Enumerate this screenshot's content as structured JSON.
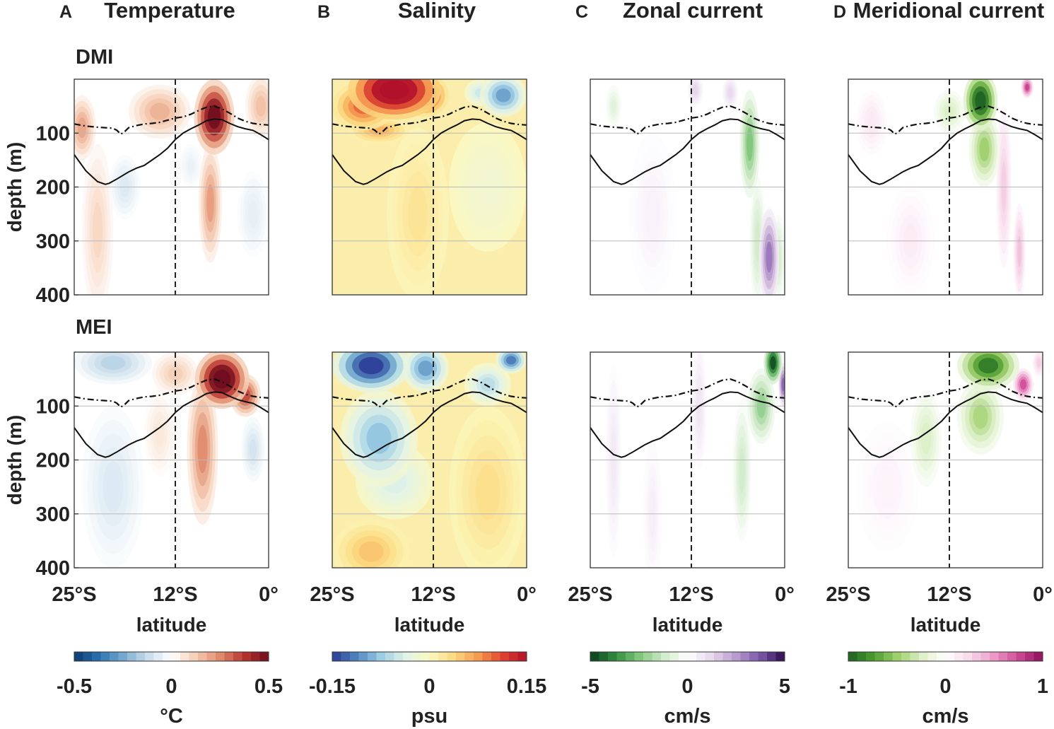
{
  "chart_data": {
    "type": "heatmap",
    "description": "Depth-latitude sections regressed on DMI and MEI",
    "rows": [
      {
        "name": "DMI",
        "label": "DMI"
      },
      {
        "name": "MEI",
        "label": "MEI"
      }
    ],
    "columns": [
      {
        "letter": "A",
        "title": "Temperature",
        "unit": "°C",
        "clim": [
          -0.5,
          0.5
        ],
        "cb_ticks": [
          "-0.5",
          "0",
          "0.5"
        ],
        "colormap": "blue-white-red"
      },
      {
        "letter": "B",
        "title": "Salinity",
        "unit": "psu",
        "clim": [
          -0.15,
          0.15
        ],
        "cb_ticks": [
          "-0.15",
          "0",
          "0.15"
        ],
        "colormap": "spectral"
      },
      {
        "letter": "C",
        "title": "Zonal current",
        "unit": "cm/s",
        "clim": [
          -5,
          5
        ],
        "cb_ticks": [
          "-5",
          "0",
          "5"
        ],
        "colormap": "green-white-purple"
      },
      {
        "letter": "D",
        "title": "Meridional current",
        "unit": "cm/s",
        "clim": [
          -1,
          1
        ],
        "cb_ticks": [
          "-1",
          "0",
          "1"
        ],
        "colormap": "green-white-pink"
      }
    ],
    "xaxis": {
      "label": "latitude",
      "ticks": [
        "25°S",
        "12°S",
        "0°"
      ],
      "tick_values": [
        -25,
        -12,
        0
      ],
      "range": [
        -25,
        0
      ]
    },
    "yaxis": {
      "label": "depth (m)",
      "ticks": [
        "100",
        "200",
        "300",
        "400"
      ],
      "tick_values": [
        100,
        200,
        300,
        400
      ],
      "range": [
        0,
        400
      ],
      "reversed": true
    },
    "reference_line": {
      "latitude": -12,
      "style": "dashed"
    },
    "contours": {
      "solid": {
        "lat": [
          -25,
          -23.5,
          -22,
          -21,
          -20.5,
          -19.5,
          -18,
          -17,
          -16,
          -15,
          -14,
          -13,
          -12,
          -11,
          -10,
          -9,
          -8,
          -7,
          -6,
          -5,
          -4,
          -3,
          -2,
          -1,
          0
        ],
        "depth": [
          140,
          170,
          190,
          195,
          193,
          185,
          172,
          165,
          160,
          150,
          140,
          128,
          112,
          100,
          92,
          85,
          77,
          74,
          75,
          82,
          88,
          92,
          95,
          103,
          112
        ]
      },
      "dashdot": {
        "lat": [
          -25,
          -23.5,
          -22,
          -21,
          -20,
          -19.5,
          -19,
          -18.5,
          -18,
          -17,
          -16,
          -15,
          -14,
          -13,
          -12,
          -11,
          -10,
          -9,
          -8,
          -7,
          -6,
          -5,
          -4,
          -3,
          -2,
          -1,
          0
        ],
        "depth": [
          83,
          87,
          89,
          90,
          91,
          95,
          102,
          97,
          90,
          86,
          83,
          82,
          80,
          76,
          72,
          70,
          65,
          58,
          52,
          50,
          55,
          63,
          72,
          78,
          82,
          84,
          85
        ]
      }
    },
    "anomaly_blobs": {
      "DMI": {
        "Temperature": [
          {
            "lat": -7,
            "depth": 70,
            "value": 0.55,
            "rlat": 2.6,
            "rdep": 70
          },
          {
            "lat": -7.5,
            "depth": 230,
            "value": 0.22,
            "rlat": 1.5,
            "rdep": 110
          },
          {
            "lat": -14,
            "depth": 60,
            "value": 0.18,
            "rlat": 4,
            "rdep": 50
          },
          {
            "lat": -24,
            "depth": 90,
            "value": 0.2,
            "rlat": 1.8,
            "rdep": 60
          },
          {
            "lat": -1,
            "depth": 50,
            "value": 0.15,
            "rlat": 2,
            "rdep": 60
          },
          {
            "lat": -22,
            "depth": 280,
            "value": 0.1,
            "rlat": 2,
            "rdep": 160
          },
          {
            "lat": -18.5,
            "depth": 200,
            "value": -0.08,
            "rlat": 2,
            "rdep": 60
          },
          {
            "lat": -10,
            "depth": 160,
            "value": -0.05,
            "rlat": 1.5,
            "rdep": 40
          },
          {
            "lat": -2,
            "depth": 250,
            "value": -0.06,
            "rlat": 2,
            "rdep": 80
          }
        ],
        "Salinity": [
          {
            "lat": -17,
            "depth": 20,
            "value": 0.2,
            "rlat": 6,
            "rdep": 55
          },
          {
            "lat": -13,
            "depth": 30,
            "value": 0.12,
            "rlat": 3,
            "rdep": 40
          },
          {
            "lat": -21,
            "depth": 50,
            "value": 0.1,
            "rlat": 4,
            "rdep": 45
          },
          {
            "lat": -19,
            "depth": 95,
            "value": 0.06,
            "rlat": 4,
            "rdep": 25
          },
          {
            "lat": -3,
            "depth": 30,
            "value": -0.1,
            "rlat": 3,
            "rdep": 40
          },
          {
            "lat": -6,
            "depth": 25,
            "value": -0.05,
            "rlat": 2,
            "rdep": 25
          },
          {
            "lat": -5,
            "depth": 200,
            "value": -0.015,
            "rlat": 5,
            "rdep": 120
          },
          {
            "lat": -14,
            "depth": 250,
            "value": 0.025,
            "rlat": 4,
            "rdep": 160
          }
        ],
        "Zonal current": [
          {
            "lat": -4.5,
            "depth": 120,
            "value": -2.5,
            "rlat": 1.3,
            "rdep": 100
          },
          {
            "lat": -3.5,
            "depth": 300,
            "value": -1.2,
            "rlat": 1,
            "rdep": 120
          },
          {
            "lat": -0.8,
            "depth": 330,
            "value": -1.2,
            "rlat": 0.8,
            "rdep": 80
          },
          {
            "lat": -2,
            "depth": 330,
            "value": 3.2,
            "rlat": 1.3,
            "rdep": 90
          },
          {
            "lat": -11.5,
            "depth": 20,
            "value": 1.3,
            "rlat": 1,
            "rdep": 30
          },
          {
            "lat": -7,
            "depth": 25,
            "value": 1.2,
            "rlat": 1,
            "rdep": 30
          },
          {
            "lat": -22,
            "depth": 50,
            "value": -0.8,
            "rlat": 1,
            "rdep": 40
          },
          {
            "lat": -17,
            "depth": 250,
            "value": 0.4,
            "rlat": 3,
            "rdep": 150
          }
        ],
        "Meridional current": [
          {
            "lat": -8,
            "depth": 40,
            "value": -1.1,
            "rlat": 2.2,
            "rdep": 55
          },
          {
            "lat": -7.5,
            "depth": 130,
            "value": -0.5,
            "rlat": 2,
            "rdep": 70
          },
          {
            "lat": -2,
            "depth": 15,
            "value": 0.8,
            "rlat": 0.8,
            "rdep": 20
          },
          {
            "lat": -5,
            "depth": 200,
            "value": 0.3,
            "rlat": 1,
            "rdep": 150
          },
          {
            "lat": -3,
            "depth": 320,
            "value": 0.35,
            "rlat": 0.8,
            "rdep": 90
          },
          {
            "lat": -12,
            "depth": 60,
            "value": -0.25,
            "rlat": 2,
            "rdep": 40
          },
          {
            "lat": -22,
            "depth": 80,
            "value": 0.15,
            "rlat": 2,
            "rdep": 60
          },
          {
            "lat": -17,
            "depth": 300,
            "value": 0.12,
            "rlat": 3,
            "rdep": 100
          }
        ]
      },
      "MEI": {
        "Temperature": [
          {
            "lat": -6,
            "depth": 50,
            "value": 0.6,
            "rlat": 3.5,
            "rdep": 55
          },
          {
            "lat": -8.5,
            "depth": 180,
            "value": 0.25,
            "rlat": 2,
            "rdep": 140
          },
          {
            "lat": -3,
            "depth": 80,
            "value": 0.35,
            "rlat": 2,
            "rdep": 40
          },
          {
            "lat": -12,
            "depth": 40,
            "value": 0.12,
            "rlat": 3,
            "rdep": 40
          },
          {
            "lat": -20,
            "depth": 20,
            "value": -0.15,
            "rlat": 5,
            "rdep": 40
          },
          {
            "lat": -20,
            "depth": 250,
            "value": -0.08,
            "rlat": 4,
            "rdep": 150
          },
          {
            "lat": -2,
            "depth": 180,
            "value": -0.1,
            "rlat": 1.5,
            "rdep": 60
          },
          {
            "lat": -14,
            "depth": 150,
            "value": 0.06,
            "rlat": 2,
            "rdep": 80
          }
        ],
        "Salinity": [
          {
            "lat": -20,
            "depth": 25,
            "value": -0.16,
            "rlat": 5,
            "rdep": 50
          },
          {
            "lat": -13,
            "depth": 30,
            "value": -0.1,
            "rlat": 3,
            "rdep": 45
          },
          {
            "lat": -2,
            "depth": 15,
            "value": -0.12,
            "rlat": 2,
            "rdep": 25
          },
          {
            "lat": -19,
            "depth": 160,
            "value": -0.08,
            "rlat": 5,
            "rdep": 90
          },
          {
            "lat": -17,
            "depth": 240,
            "value": -0.04,
            "rlat": 5,
            "rdep": 70
          },
          {
            "lat": -5,
            "depth": 60,
            "value": -0.06,
            "rlat": 3,
            "rdep": 40
          },
          {
            "lat": -20,
            "depth": 370,
            "value": 0.05,
            "rlat": 5,
            "rdep": 60
          },
          {
            "lat": -5,
            "depth": 260,
            "value": 0.03,
            "rlat": 5,
            "rdep": 160
          }
        ],
        "Zonal current": [
          {
            "lat": -1.5,
            "depth": 20,
            "value": -4.8,
            "rlat": 1.2,
            "rdep": 40
          },
          {
            "lat": -3,
            "depth": 100,
            "value": -2.2,
            "rlat": 1.8,
            "rdep": 70
          },
          {
            "lat": -5.5,
            "depth": 220,
            "value": -1.2,
            "rlat": 1.2,
            "rdep": 130
          },
          {
            "lat": -0.2,
            "depth": 60,
            "value": 3.5,
            "rlat": 0.6,
            "rdep": 40
          },
          {
            "lat": -11,
            "depth": 100,
            "value": 0.8,
            "rlat": 1,
            "rdep": 120
          },
          {
            "lat": -22,
            "depth": 200,
            "value": 0.7,
            "rlat": 1,
            "rdep": 180
          },
          {
            "lat": -17,
            "depth": 300,
            "value": 0.5,
            "rlat": 1.2,
            "rdep": 140
          }
        ],
        "Meridional current": [
          {
            "lat": -7,
            "depth": 25,
            "value": -0.9,
            "rlat": 4,
            "rdep": 45
          },
          {
            "lat": -8,
            "depth": 120,
            "value": -0.45,
            "rlat": 3,
            "rdep": 70
          },
          {
            "lat": -2.5,
            "depth": 60,
            "value": 0.75,
            "rlat": 1.3,
            "rdep": 30
          },
          {
            "lat": -0.5,
            "depth": 20,
            "value": 0.3,
            "rlat": 0.8,
            "rdep": 25
          },
          {
            "lat": -15,
            "depth": 160,
            "value": -0.25,
            "rlat": 2,
            "rdep": 90
          },
          {
            "lat": -20,
            "depth": 250,
            "value": 0.08,
            "rlat": 4,
            "rdep": 120
          }
        ]
      }
    }
  }
}
